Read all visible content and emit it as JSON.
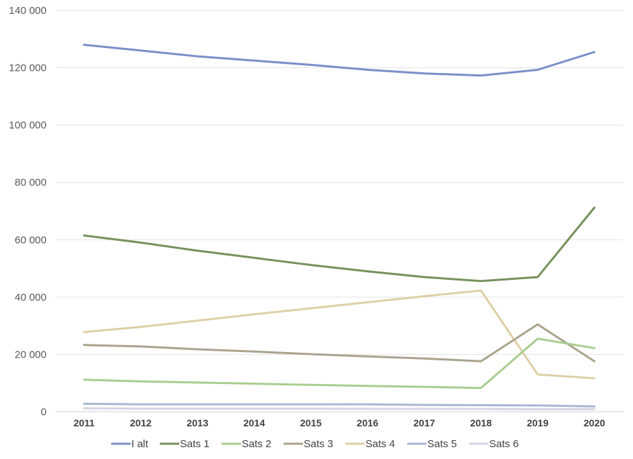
{
  "chart_data": {
    "type": "line",
    "x": [
      "2011",
      "2012",
      "2013",
      "2014",
      "2015",
      "2016",
      "2017",
      "2018",
      "2019",
      "2020"
    ],
    "yticks": [
      "0",
      "20 000",
      "40 000",
      "60 000",
      "80 000",
      "100 000",
      "120 000",
      "140 000"
    ],
    "ylim": [
      0,
      140000
    ],
    "grid": true,
    "legend_position": "bottom",
    "title": "",
    "xlabel": "",
    "ylabel": "",
    "series": [
      {
        "name": "I alt",
        "color": "#7b8fc9",
        "values": [
          128000,
          126000,
          124000,
          122500,
          121000,
          119300,
          118000,
          117300,
          119300,
          125500
        ]
      },
      {
        "name": "Sats 1",
        "color": "#76925b",
        "values": [
          61500,
          59000,
          56200,
          53700,
          51200,
          49000,
          47000,
          45600,
          47000,
          71200
        ]
      },
      {
        "name": "Sats 2",
        "color": "#a9cd91",
        "values": [
          11200,
          10600,
          10200,
          9800,
          9400,
          9000,
          8700,
          8300,
          25500,
          22200
        ]
      },
      {
        "name": "Sats 3",
        "color": "#aaa38e",
        "values": [
          23300,
          22800,
          21800,
          21000,
          20100,
          19300,
          18600,
          17600,
          30500,
          17600
        ]
      },
      {
        "name": "Sats 4",
        "color": "#ddd0a5",
        "values": [
          27800,
          29600,
          31800,
          34000,
          36100,
          38200,
          40300,
          42300,
          13000,
          11700
        ]
      },
      {
        "name": "Sats 5",
        "color": "#a9b8d2",
        "values": [
          2800,
          2600,
          2600,
          2600,
          2600,
          2600,
          2400,
          2300,
          2200,
          1900
        ]
      },
      {
        "name": "Sats 6",
        "color": "#d3d4e4",
        "values": [
          1200,
          1100,
          1100,
          1100,
          1100,
          1000,
          1000,
          1000,
          900,
          900
        ]
      }
    ]
  }
}
